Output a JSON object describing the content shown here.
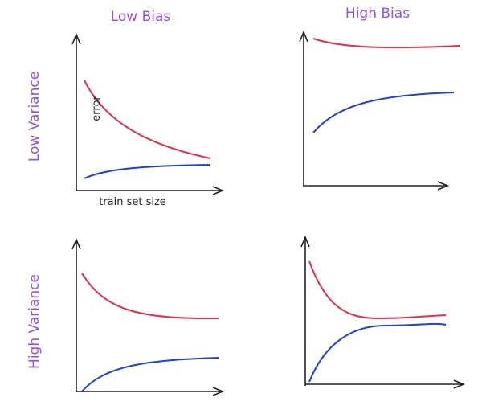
{
  "columns": [
    "Low Bias",
    "High Bias"
  ],
  "rows": [
    "Low Variance",
    "High Variance"
  ],
  "y_axis_label": "error",
  "x_axis_label": "train set size"
}
